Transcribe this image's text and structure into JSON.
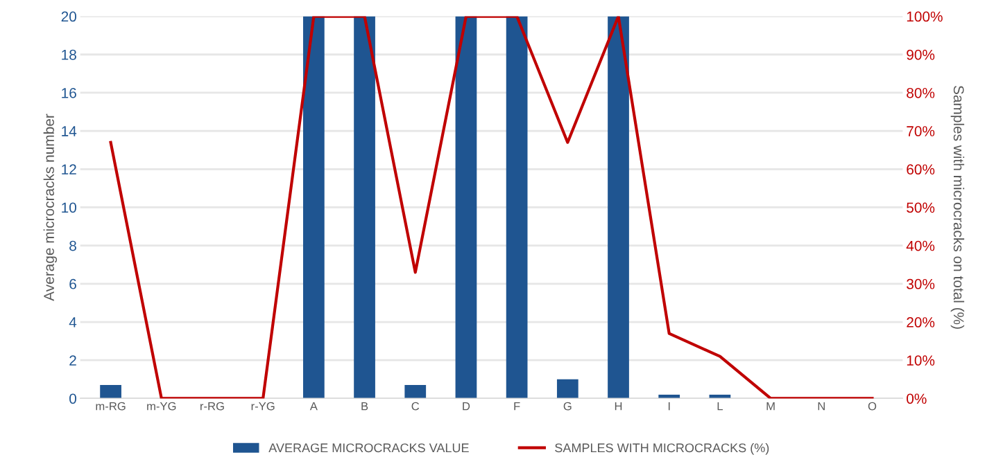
{
  "chart_data": {
    "type": "bar",
    "categories": [
      "m-RG",
      "m-YG",
      "r-RG",
      "r-YG",
      "A",
      "B",
      "C",
      "D",
      "F",
      "G",
      "H",
      "I",
      "L",
      "M",
      "N",
      "O"
    ],
    "series": [
      {
        "name": "AVERAGE MICROCRACKS VALUE",
        "color": "#1f5591",
        "values": [
          0.7,
          0,
          0,
          0,
          20,
          20,
          0.7,
          20,
          20,
          1.0,
          20,
          0.2,
          0.2,
          0,
          0,
          0
        ]
      },
      {
        "name": "SAMPLES WITH MICROCRACKS (%)",
        "type": "line",
        "axis": "y2",
        "color": "#c00000",
        "values": [
          67,
          0,
          0,
          0,
          100,
          100,
          33,
          100,
          100,
          67,
          100,
          17,
          11,
          0,
          0,
          0
        ]
      }
    ],
    "ylabel": "Average microcracks number",
    "y2label": "Samples with microcracks on total (%)",
    "ylim": [
      0,
      20
    ],
    "yticks": [
      0,
      2,
      4,
      6,
      8,
      10,
      12,
      14,
      16,
      18,
      20
    ],
    "y2lim": [
      0,
      100
    ],
    "y2ticks": [
      {
        "value": 0,
        "label": "0%"
      },
      {
        "value": 10,
        "label": "10%"
      },
      {
        "value": 20,
        "label": "20%"
      },
      {
        "value": 30,
        "label": "30%"
      },
      {
        "value": 40,
        "label": "40%"
      },
      {
        "value": 50,
        "label": "50%"
      },
      {
        "value": 60,
        "label": "60%"
      },
      {
        "value": 70,
        "label": "70%"
      },
      {
        "value": 80,
        "label": "80%"
      },
      {
        "value": 90,
        "label": "90%"
      },
      {
        "value": 100,
        "label": "100%"
      }
    ],
    "grid": "y",
    "legend": "bottom",
    "marker": "none",
    "line_style": "solid"
  }
}
